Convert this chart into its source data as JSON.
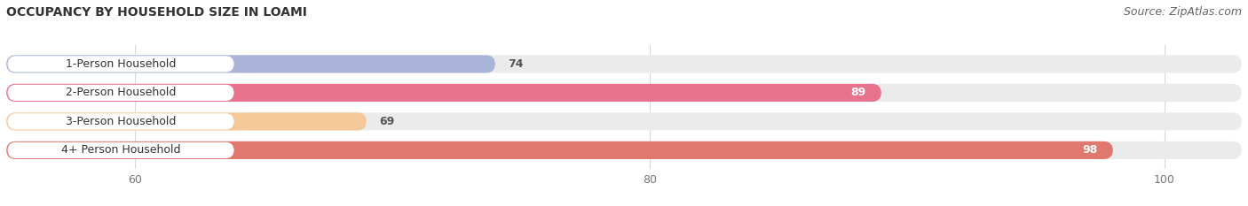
{
  "title": "OCCUPANCY BY HOUSEHOLD SIZE IN LOAMI",
  "source": "Source: ZipAtlas.com",
  "categories": [
    "1-Person Household",
    "2-Person Household",
    "3-Person Household",
    "4+ Person Household"
  ],
  "values": [
    74,
    89,
    69,
    98
  ],
  "bar_colors": [
    "#aab4d8",
    "#e8728c",
    "#f5c89a",
    "#e07870"
  ],
  "bg_colors": [
    "#ebebeb",
    "#ebebeb",
    "#ebebeb",
    "#ebebeb"
  ],
  "label_bg_colors": [
    "#ffffff",
    "#ffffff",
    "#ffffff",
    "#ffffff"
  ],
  "xlim": [
    55,
    103
  ],
  "xmin": 55,
  "xmax": 103,
  "xticks": [
    60,
    80,
    100
  ],
  "value_inside": [
    false,
    true,
    false,
    true
  ],
  "background_color": "#ffffff",
  "bar_height": 0.62,
  "figsize": [
    14.06,
    2.33
  ],
  "dpi": 100,
  "title_fontsize": 10,
  "source_fontsize": 9,
  "label_fontsize": 9,
  "value_fontsize": 9
}
